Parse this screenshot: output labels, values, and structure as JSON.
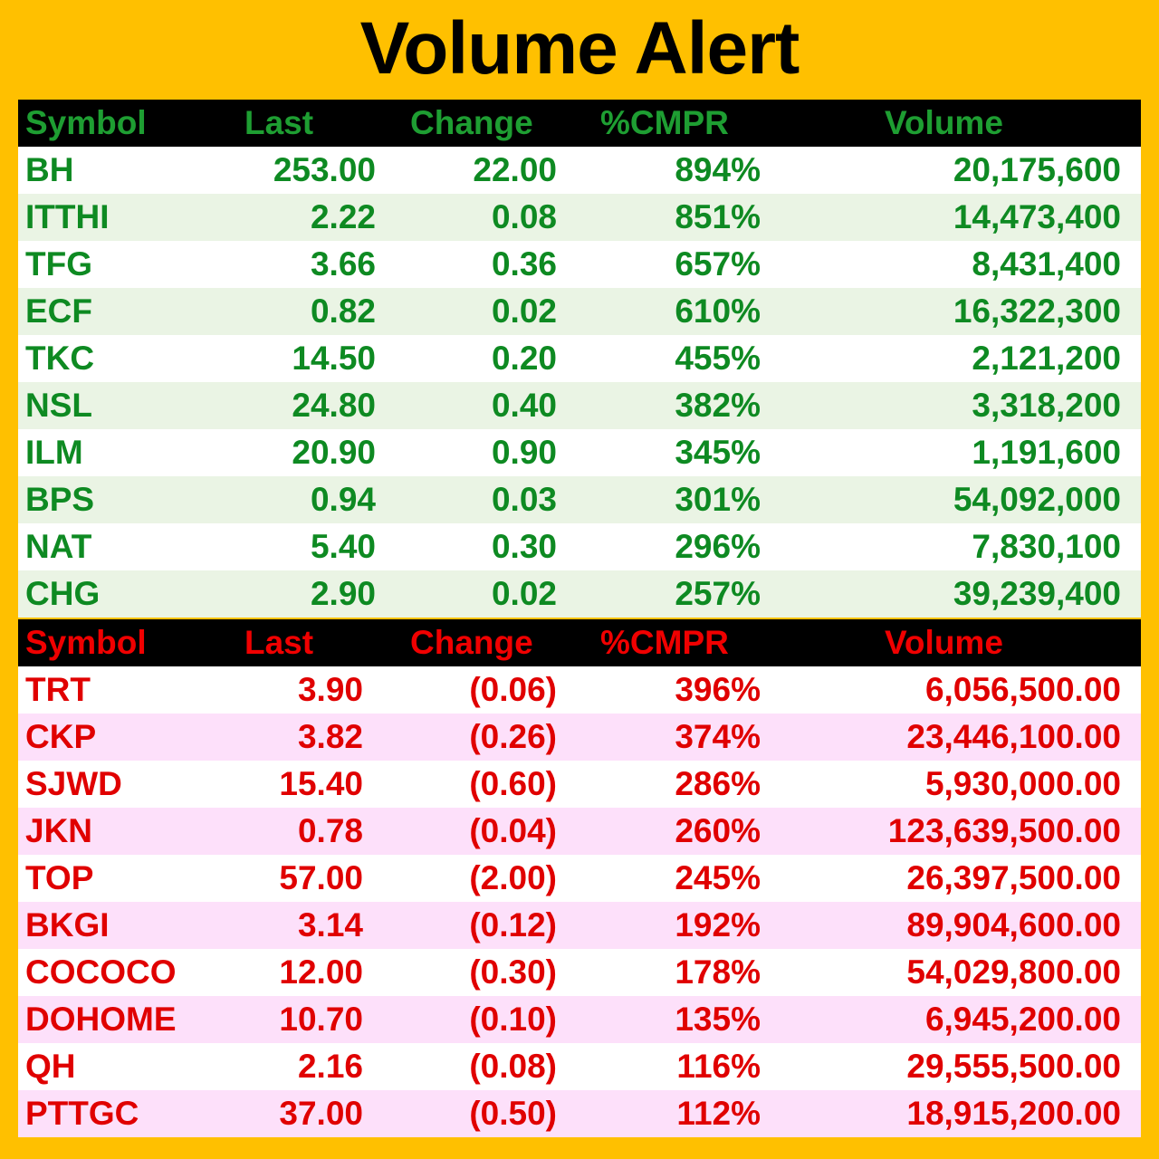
{
  "title": "Volume Alert",
  "colors": {
    "background": "#FFC000",
    "header_background": "#000000",
    "gainers_text": "#0E8A22",
    "losers_text": "#E00000",
    "gainers_stripe": "#EAF4E4",
    "losers_stripe": "#FDE0FA"
  },
  "gainers": {
    "headers": [
      "Symbol",
      "Last",
      "Change",
      "%CMPR",
      "Volume"
    ],
    "rows": [
      [
        "BH",
        "253.00",
        "22.00",
        "894%",
        "20,175,600"
      ],
      [
        "ITTHI",
        "2.22",
        "0.08",
        "851%",
        "14,473,400"
      ],
      [
        "TFG",
        "3.66",
        "0.36",
        "657%",
        "8,431,400"
      ],
      [
        "ECF",
        "0.82",
        "0.02",
        "610%",
        "16,322,300"
      ],
      [
        "TKC",
        "14.50",
        "0.20",
        "455%",
        "2,121,200"
      ],
      [
        "NSL",
        "24.80",
        "0.40",
        "382%",
        "3,318,200"
      ],
      [
        "ILM",
        "20.90",
        "0.90",
        "345%",
        "1,191,600"
      ],
      [
        "BPS",
        "0.94",
        "0.03",
        "301%",
        "54,092,000"
      ],
      [
        "NAT",
        "5.40",
        "0.30",
        "296%",
        "7,830,100"
      ],
      [
        "CHG",
        "2.90",
        "0.02",
        "257%",
        "39,239,400"
      ]
    ]
  },
  "losers": {
    "headers": [
      "Symbol",
      "Last",
      "Change",
      "%CMPR",
      "Volume"
    ],
    "rows": [
      [
        "TRT",
        "3.90",
        "(0.06)",
        "396%",
        "6,056,500.00"
      ],
      [
        "CKP",
        "3.82",
        "(0.26)",
        "374%",
        "23,446,100.00"
      ],
      [
        "SJWD",
        "15.40",
        "(0.60)",
        "286%",
        "5,930,000.00"
      ],
      [
        "JKN",
        "0.78",
        "(0.04)",
        "260%",
        "123,639,500.00"
      ],
      [
        "TOP",
        "57.00",
        "(2.00)",
        "245%",
        "26,397,500.00"
      ],
      [
        "BKGI",
        "3.14",
        "(0.12)",
        "192%",
        "89,904,600.00"
      ],
      [
        "COCOCO",
        "12.00",
        "(0.30)",
        "178%",
        "54,029,800.00"
      ],
      [
        "DOHOME",
        "10.70",
        "(0.10)",
        "135%",
        "6,945,200.00"
      ],
      [
        "QH",
        "2.16",
        "(0.08)",
        "116%",
        "29,555,500.00"
      ],
      [
        "PTTGC",
        "37.00",
        "(0.50)",
        "112%",
        "18,915,200.00"
      ]
    ]
  }
}
